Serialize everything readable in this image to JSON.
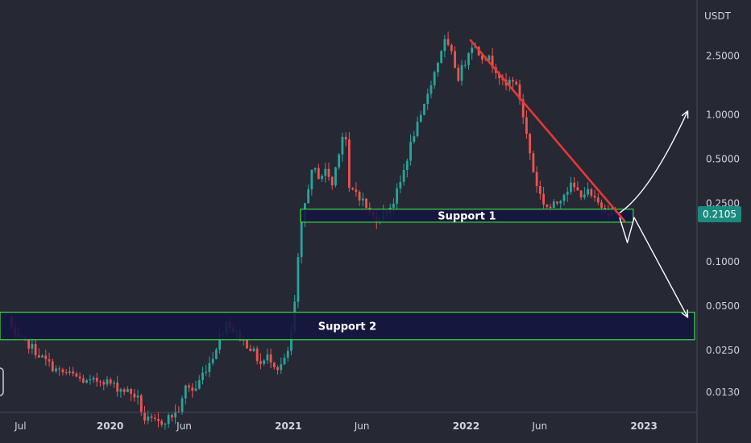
{
  "chart_data": {
    "type": "candlestick",
    "currency": "USDT",
    "y_scale": "log",
    "ylim": [
      0.0095,
      6.0
    ],
    "xlim": [
      "2019-05-20",
      "2023-04-20"
    ],
    "y_ticks": [
      {
        "value": 2.5,
        "label": "2.5000"
      },
      {
        "value": 1.0,
        "label": "1.0000"
      },
      {
        "value": 0.5,
        "label": "0.5000"
      },
      {
        "value": 0.25,
        "label": "0.2500"
      },
      {
        "value": 0.1,
        "label": "0.1000"
      },
      {
        "value": 0.05,
        "label": "0.0500"
      },
      {
        "value": 0.025,
        "label": "0.0250"
      },
      {
        "value": 0.013,
        "label": "0.0130"
      }
    ],
    "x_ticks": [
      {
        "date": "2019-07-01",
        "label": "Jul",
        "bold": false
      },
      {
        "date": "2020-01-01",
        "label": "2020",
        "bold": true
      },
      {
        "date": "2020-06-01",
        "label": "Jun",
        "bold": false
      },
      {
        "date": "2021-01-01",
        "label": "2021",
        "bold": true
      },
      {
        "date": "2021-06-01",
        "label": "Jun",
        "bold": false
      },
      {
        "date": "2022-01-01",
        "label": "2022",
        "bold": true
      },
      {
        "date": "2022-06-01",
        "label": "Jun",
        "bold": false
      },
      {
        "date": "2023-01-01",
        "label": "2023",
        "bold": true
      }
    ],
    "last_price": {
      "value": 0.2105,
      "label": "0.2105"
    },
    "price_path": [
      [
        "2019-06-10",
        0.042
      ],
      [
        "2019-06-24",
        0.03
      ],
      [
        "2019-07-20",
        0.028
      ],
      [
        "2019-08-20",
        0.022
      ],
      [
        "2019-09-20",
        0.018
      ],
      [
        "2019-10-20",
        0.017
      ],
      [
        "2019-11-20",
        0.015
      ],
      [
        "2019-12-20",
        0.016
      ],
      [
        "2020-01-20",
        0.014
      ],
      [
        "2020-02-15",
        0.013
      ],
      [
        "2020-03-01",
        0.012
      ],
      [
        "2020-03-15",
        0.0085
      ],
      [
        "2020-04-15",
        0.008
      ],
      [
        "2020-05-10",
        0.009
      ],
      [
        "2020-05-28",
        0.01
      ],
      [
        "2020-06-10",
        0.015
      ],
      [
        "2020-06-25",
        0.013
      ],
      [
        "2020-07-15",
        0.018
      ],
      [
        "2020-08-01",
        0.022
      ],
      [
        "2020-08-15",
        0.03
      ],
      [
        "2020-09-01",
        0.04
      ],
      [
        "2020-09-15",
        0.034
      ],
      [
        "2020-10-01",
        0.03
      ],
      [
        "2020-10-20",
        0.026
      ],
      [
        "2020-11-10",
        0.02
      ],
      [
        "2020-11-25",
        0.023
      ],
      [
        "2020-12-15",
        0.019
      ],
      [
        "2021-01-01",
        0.022
      ],
      [
        "2021-01-10",
        0.03
      ],
      [
        "2021-01-20",
        0.06
      ],
      [
        "2021-01-28",
        0.14
      ],
      [
        "2021-02-05",
        0.22
      ],
      [
        "2021-02-15",
        0.33
      ],
      [
        "2021-02-25",
        0.43
      ],
      [
        "2021-03-10",
        0.38
      ],
      [
        "2021-03-25",
        0.42
      ],
      [
        "2021-04-05",
        0.33
      ],
      [
        "2021-04-20",
        0.6
      ],
      [
        "2021-05-01",
        0.85
      ],
      [
        "2021-05-10",
        0.3
      ],
      [
        "2021-05-25",
        0.3
      ],
      [
        "2021-06-10",
        0.25
      ],
      [
        "2021-06-25",
        0.2
      ],
      [
        "2021-07-10",
        0.2
      ],
      [
        "2021-07-25",
        0.22
      ],
      [
        "2021-08-10",
        0.26
      ],
      [
        "2021-08-25",
        0.36
      ],
      [
        "2021-09-05",
        0.5
      ],
      [
        "2021-09-20",
        0.75
      ],
      [
        "2021-10-05",
        0.95
      ],
      [
        "2021-10-20",
        1.5
      ],
      [
        "2021-11-05",
        2.1
      ],
      [
        "2021-11-20",
        3.2
      ],
      [
        "2021-12-05",
        2.6
      ],
      [
        "2021-12-20",
        1.8
      ],
      [
        "2022-01-05",
        2.4
      ],
      [
        "2022-01-15",
        3.1
      ],
      [
        "2022-02-01",
        2.6
      ],
      [
        "2022-02-20",
        2.4
      ],
      [
        "2022-03-10",
        2.0
      ],
      [
        "2022-03-25",
        1.5
      ],
      [
        "2022-04-10",
        1.8
      ],
      [
        "2022-04-25",
        1.3
      ],
      [
        "2022-05-10",
        0.7
      ],
      [
        "2022-05-25",
        0.38
      ],
      [
        "2022-06-10",
        0.26
      ],
      [
        "2022-06-25",
        0.23
      ],
      [
        "2022-07-10",
        0.25
      ],
      [
        "2022-07-25",
        0.3
      ],
      [
        "2022-08-10",
        0.33
      ],
      [
        "2022-08-25",
        0.29
      ],
      [
        "2022-09-10",
        0.3
      ],
      [
        "2022-09-25",
        0.26
      ],
      [
        "2022-10-10",
        0.24
      ],
      [
        "2022-10-25",
        0.22
      ],
      [
        "2022-11-08",
        0.2105
      ]
    ],
    "zones": [
      {
        "label": "Support 1",
        "from_date": "2021-01-26",
        "to_date": "2022-12-10",
        "low": 0.186,
        "high": 0.228
      },
      {
        "label": "Support 2",
        "from_date": "2019-05-20",
        "to_date": "2023-04-15",
        "low": 0.0296,
        "high": 0.0455
      }
    ],
    "trendline": {
      "from": [
        "2022-01-10",
        3.2
      ],
      "to": [
        "2022-11-22",
        0.19
      ],
      "color": "#e53935"
    },
    "scenario_up": [
      [
        "2022-11-12",
        0.215
      ],
      [
        "2023-01-15",
        0.3
      ],
      [
        "2023-04-01",
        1.06
      ]
    ],
    "scenario_down": [
      [
        "2022-11-12",
        0.2
      ],
      [
        "2022-11-28",
        0.135
      ],
      [
        "2022-12-12",
        0.2
      ],
      [
        "2023-04-01",
        0.042
      ]
    ],
    "colors": {
      "background": "#262834",
      "bullish": "#26a69a",
      "bearish": "#ef5350",
      "zone_fill": "#141440",
      "zone_stroke": "#3ddc3d",
      "scenario": "#ffffff",
      "axis_text": "#d1d4dc",
      "price_tag": "#1b8a7f"
    }
  }
}
